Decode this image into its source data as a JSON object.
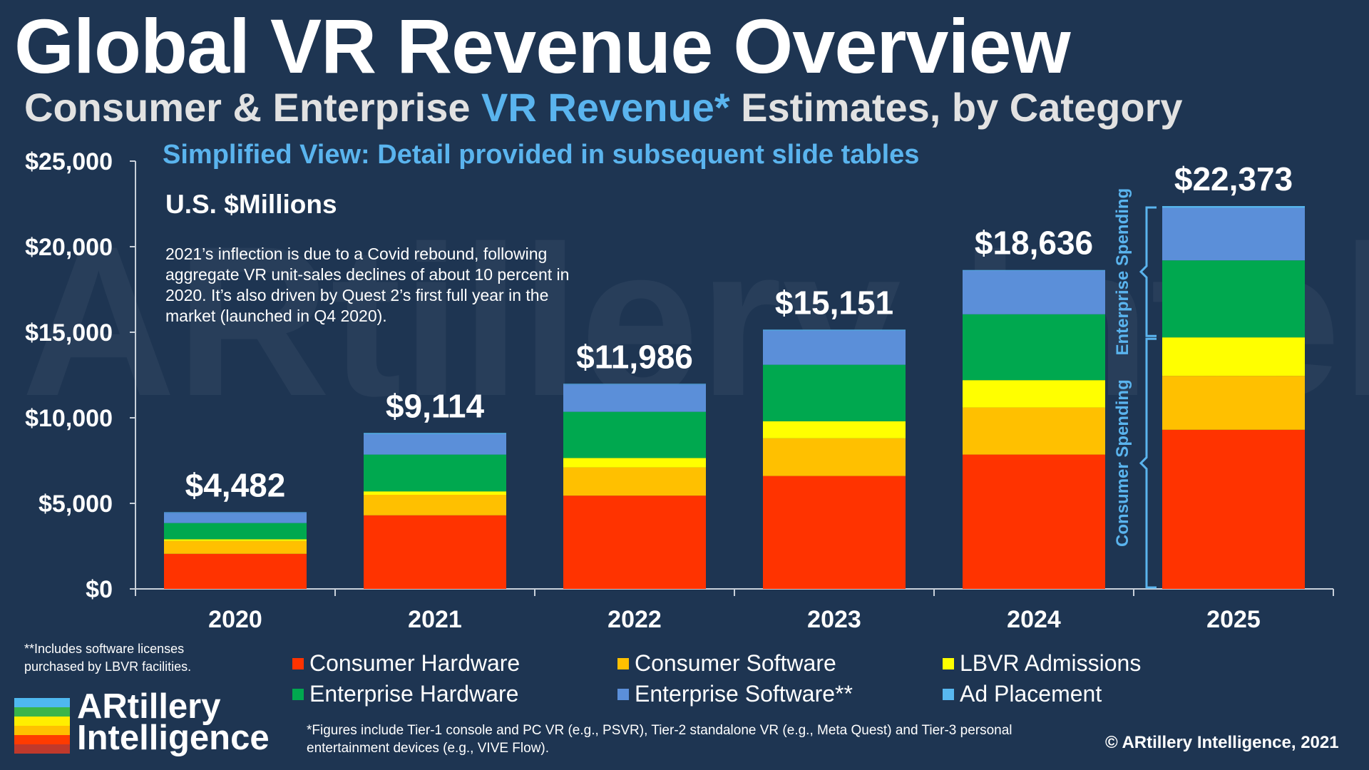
{
  "title": "Global VR Revenue Overview",
  "subtitle": {
    "part1": "Consumer & Enterprise ",
    "part2": "VR Revenue*",
    "part3": " Estimates, by Category"
  },
  "simplified_note": "Simplified View: Detail provided in subsequent slide tables",
  "units_label": "U.S. $Millions",
  "annotation": "2021’s inflection is due to a Covid rebound, following aggregate VR unit-sales declines of about 10 percent in 2020. It’s also driven by Quest 2’s first full year in the market (launched in Q4 2020).",
  "watermark_text": "ARtillery Intelligence",
  "bracket_labels": {
    "enterprise": "Enterprise Spending",
    "consumer": "Consumer Spending"
  },
  "license_note": "**Includes software licenses purchased by LBVR facilities.",
  "figures_note": "*Figures include Tier-1 console and PC VR (e.g., PSVR), Tier-2 standalone VR (e.g., Meta Quest) and Tier-3 personal entertainment devices (e.g., VIVE Flow).",
  "copyright": "© ARtillery Intelligence, 2021",
  "logo": {
    "line1": "ARtillery",
    "line2": "Intelligence",
    "stripe_colors": [
      "#4fb8f0",
      "#39b54a",
      "#ffee00",
      "#ffc000",
      "#ff3b00",
      "#c0392b"
    ]
  },
  "chart_data": {
    "type": "bar",
    "stacked": true,
    "categories": [
      "2020",
      "2021",
      "2022",
      "2023",
      "2024",
      "2025"
    ],
    "ylim": [
      0,
      25000
    ],
    "yticks": [
      0,
      5000,
      10000,
      15000,
      20000,
      25000
    ],
    "ytick_labels": [
      "$0",
      "$5,000",
      "$10,000",
      "$15,000",
      "$20,000",
      "$25,000"
    ],
    "totals": [
      4482,
      9114,
      11986,
      15151,
      18636,
      22373
    ],
    "total_labels": [
      "$4,482",
      "$9,114",
      "$11,986",
      "$15,151",
      "$18,636",
      "$22,373"
    ],
    "series": [
      {
        "name": "Consumer Hardware",
        "color": "#ff3300",
        "values": [
          2050,
          4300,
          5450,
          6600,
          7850,
          9300
        ]
      },
      {
        "name": "Consumer Software",
        "color": "#ffc000",
        "values": [
          750,
          1200,
          1650,
          2200,
          2750,
          3150
        ]
      },
      {
        "name": "LBVR Admissions",
        "color": "#ffff00",
        "values": [
          100,
          200,
          550,
          1000,
          1600,
          2250
        ]
      },
      {
        "name": "Enterprise Hardware",
        "color": "#00a84f",
        "values": [
          950,
          2150,
          2700,
          3300,
          3850,
          4500
        ]
      },
      {
        "name": "Enterprise Software**",
        "color": "#5b8fd9",
        "values": [
          600,
          1200,
          1600,
          2000,
          2550,
          3073
        ]
      },
      {
        "name": "Ad Placement",
        "color": "#58b8f0",
        "values": [
          32,
          64,
          36,
          51,
          36,
          100
        ]
      }
    ],
    "grid": false,
    "legend_position": "bottom"
  }
}
